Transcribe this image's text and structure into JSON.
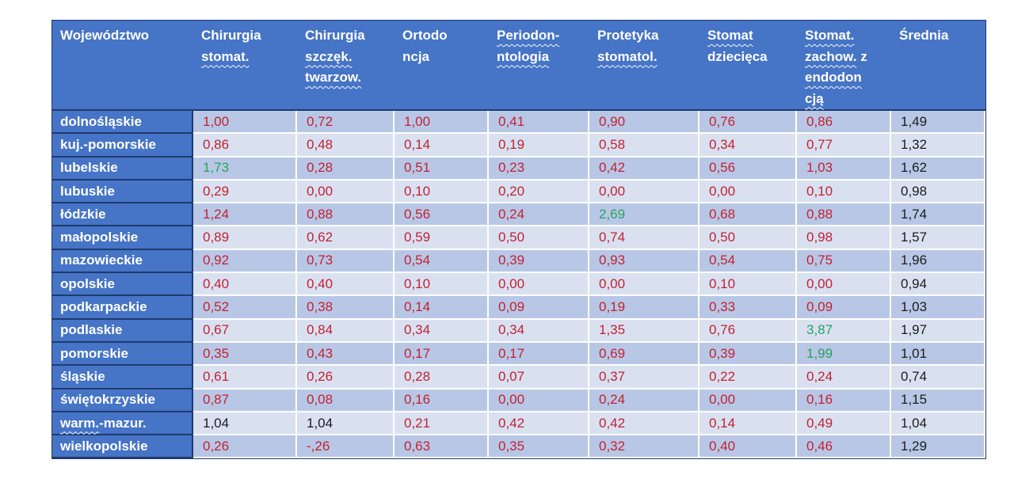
{
  "colors": {
    "header_blue": "#4674c6",
    "border_navy": "#1f3a6e",
    "band_dark": "#b8c7e6",
    "band_light": "#d9e1f1",
    "value_red": "#c32232",
    "value_green": "#27a35f",
    "value_black": "#1c1c1c"
  },
  "table": {
    "columns": [
      {
        "id": "wojewodztwo",
        "lines": [
          {
            "parts": [
              {
                "text": "Województwo",
                "wavy": false
              }
            ]
          }
        ]
      },
      {
        "id": "chirurgia-stomat",
        "lines": [
          {
            "parts": [
              {
                "text": "Chirurgia",
                "wavy": false
              }
            ]
          },
          {
            "parts": [
              {
                "text": "stomat.",
                "wavy": true
              }
            ]
          }
        ]
      },
      {
        "id": "chirurgia-szczek-twarzow",
        "lines": [
          {
            "parts": [
              {
                "text": "Chirurgia",
                "wavy": false
              }
            ]
          },
          {
            "parts": [
              {
                "text": "szczęk.",
                "wavy": true
              }
            ]
          },
          {
            "parts": [
              {
                "text": "twarzow.",
                "wavy": true
              }
            ]
          }
        ]
      },
      {
        "id": "ortodoncja",
        "lines": [
          {
            "parts": [
              {
                "text": "Ortodo",
                "wavy": false
              }
            ]
          },
          {
            "parts": [
              {
                "text": "ncja",
                "wavy": false
              }
            ]
          }
        ]
      },
      {
        "id": "periodontologia",
        "lines": [
          {
            "parts": [
              {
                "text": "Periodon-",
                "wavy": true
              }
            ]
          },
          {
            "parts": [
              {
                "text": "ntologia",
                "wavy": true
              }
            ]
          }
        ]
      },
      {
        "id": "protetyka-stomatol",
        "lines": [
          {
            "parts": [
              {
                "text": "Protetyka",
                "wavy": false
              }
            ]
          },
          {
            "parts": [
              {
                "text": "stomatol.",
                "wavy": true
              }
            ]
          }
        ]
      },
      {
        "id": "stomat-dziecieca",
        "lines": [
          {
            "parts": [
              {
                "text": "Stomat",
                "wavy": true
              }
            ]
          },
          {
            "parts": [
              {
                "text": "dziecięca",
                "wavy": false
              }
            ]
          }
        ]
      },
      {
        "id": "stomat-zachow-endodoncja",
        "lines": [
          {
            "parts": [
              {
                "text": "Stomat.",
                "wavy": true
              }
            ]
          },
          {
            "parts": [
              {
                "text": "zachow.",
                "wavy": true
              },
              {
                "text": " z",
                "wavy": false
              }
            ]
          },
          {
            "parts": [
              {
                "text": "endodon",
                "wavy": true
              }
            ]
          },
          {
            "parts": [
              {
                "text": "cją",
                "wavy": true
              }
            ]
          }
        ]
      },
      {
        "id": "srednia",
        "lines": [
          {
            "parts": [
              {
                "text": "Średnia",
                "wavy": false
              }
            ]
          }
        ]
      }
    ],
    "rows": [
      {
        "label": [
          {
            "text": "dolnośląskie",
            "wavy": false
          }
        ],
        "values": [
          {
            "t": "1,00",
            "c": "red"
          },
          {
            "t": "0,72",
            "c": "red"
          },
          {
            "t": "1,00",
            "c": "red"
          },
          {
            "t": "0,41",
            "c": "red"
          },
          {
            "t": "0,90",
            "c": "red"
          },
          {
            "t": "0,76",
            "c": "red"
          },
          {
            "t": "0,86",
            "c": "red"
          },
          {
            "t": "1,49",
            "c": "black"
          }
        ]
      },
      {
        "label": [
          {
            "text": "kuj.-pomorskie",
            "wavy": false
          }
        ],
        "values": [
          {
            "t": "0,86",
            "c": "red"
          },
          {
            "t": "0,48",
            "c": "red"
          },
          {
            "t": "0,14",
            "c": "red"
          },
          {
            "t": "0,19",
            "c": "red"
          },
          {
            "t": "0,58",
            "c": "red"
          },
          {
            "t": "0,34",
            "c": "red"
          },
          {
            "t": "0,77",
            "c": "red"
          },
          {
            "t": "1,32",
            "c": "black"
          }
        ]
      },
      {
        "label": [
          {
            "text": "lubelskie",
            "wavy": false
          }
        ],
        "values": [
          {
            "t": "1,73",
            "c": "green"
          },
          {
            "t": "0,28",
            "c": "red"
          },
          {
            "t": "0,51",
            "c": "red"
          },
          {
            "t": "0,23",
            "c": "red"
          },
          {
            "t": "0,42",
            "c": "red"
          },
          {
            "t": "0,56",
            "c": "red"
          },
          {
            "t": "1,03",
            "c": "red"
          },
          {
            "t": "1,62",
            "c": "black"
          }
        ]
      },
      {
        "label": [
          {
            "text": "lubuskie",
            "wavy": false
          }
        ],
        "values": [
          {
            "t": "0,29",
            "c": "red"
          },
          {
            "t": "0,00",
            "c": "red"
          },
          {
            "t": "0,10",
            "c": "red"
          },
          {
            "t": "0,20",
            "c": "red"
          },
          {
            "t": "0,00",
            "c": "red"
          },
          {
            "t": "0,00",
            "c": "red"
          },
          {
            "t": "0,10",
            "c": "red"
          },
          {
            "t": "0,98",
            "c": "black"
          }
        ]
      },
      {
        "label": [
          {
            "text": "łódzkie",
            "wavy": false
          }
        ],
        "values": [
          {
            "t": "1,24",
            "c": "red"
          },
          {
            "t": "0,88",
            "c": "red"
          },
          {
            "t": "0,56",
            "c": "red"
          },
          {
            "t": "0,24",
            "c": "red"
          },
          {
            "t": "2,69",
            "c": "green"
          },
          {
            "t": "0,68",
            "c": "red"
          },
          {
            "t": "0,88",
            "c": "red"
          },
          {
            "t": "1,74",
            "c": "black"
          }
        ]
      },
      {
        "label": [
          {
            "text": "małopolskie",
            "wavy": false
          }
        ],
        "values": [
          {
            "t": "0,89",
            "c": "red"
          },
          {
            "t": "0,62",
            "c": "red"
          },
          {
            "t": "0,59",
            "c": "red"
          },
          {
            "t": "0,50",
            "c": "red"
          },
          {
            "t": "0,74",
            "c": "red"
          },
          {
            "t": "0,50",
            "c": "red"
          },
          {
            "t": "0,98",
            "c": "red"
          },
          {
            "t": "1,57",
            "c": "black"
          }
        ]
      },
      {
        "label": [
          {
            "text": "mazowieckie",
            "wavy": false
          }
        ],
        "values": [
          {
            "t": "0,92",
            "c": "red"
          },
          {
            "t": "0,73",
            "c": "red"
          },
          {
            "t": "0,54",
            "c": "red"
          },
          {
            "t": "0,39",
            "c": "red"
          },
          {
            "t": "0,93",
            "c": "red"
          },
          {
            "t": "0,54",
            "c": "red"
          },
          {
            "t": "0,75",
            "c": "red"
          },
          {
            "t": "1,96",
            "c": "black"
          }
        ]
      },
      {
        "label": [
          {
            "text": "opolskie",
            "wavy": false
          }
        ],
        "values": [
          {
            "t": "0,40",
            "c": "red"
          },
          {
            "t": "0,40",
            "c": "red"
          },
          {
            "t": "0,10",
            "c": "red"
          },
          {
            "t": "0,00",
            "c": "red"
          },
          {
            "t": "0,00",
            "c": "red"
          },
          {
            "t": "0,10",
            "c": "red"
          },
          {
            "t": "0,00",
            "c": "red"
          },
          {
            "t": "0,94",
            "c": "black"
          }
        ]
      },
      {
        "label": [
          {
            "text": "podkarpackie",
            "wavy": false
          }
        ],
        "values": [
          {
            "t": "0,52",
            "c": "red"
          },
          {
            "t": "0,38",
            "c": "red"
          },
          {
            "t": "0,14",
            "c": "red"
          },
          {
            "t": "0,09",
            "c": "red"
          },
          {
            "t": "0,19",
            "c": "red"
          },
          {
            "t": "0,33",
            "c": "red"
          },
          {
            "t": "0,09",
            "c": "red"
          },
          {
            "t": "1,03",
            "c": "black"
          }
        ]
      },
      {
        "label": [
          {
            "text": "podlaskie",
            "wavy": false
          }
        ],
        "values": [
          {
            "t": "0,67",
            "c": "red"
          },
          {
            "t": "0,84",
            "c": "red"
          },
          {
            "t": "0,34",
            "c": "red"
          },
          {
            "t": "0,34",
            "c": "red"
          },
          {
            "t": "1,35",
            "c": "red"
          },
          {
            "t": "0,76",
            "c": "red"
          },
          {
            "t": "3,87",
            "c": "green"
          },
          {
            "t": "1,97",
            "c": "black"
          }
        ]
      },
      {
        "label": [
          {
            "text": "pomorskie",
            "wavy": false
          }
        ],
        "values": [
          {
            "t": "0,35",
            "c": "red"
          },
          {
            "t": "0,43",
            "c": "red"
          },
          {
            "t": "0,17",
            "c": "red"
          },
          {
            "t": "0,17",
            "c": "red"
          },
          {
            "t": "0,69",
            "c": "red"
          },
          {
            "t": "0,39",
            "c": "red"
          },
          {
            "t": "1,99",
            "c": "green"
          },
          {
            "t": "1,01",
            "c": "black"
          }
        ]
      },
      {
        "label": [
          {
            "text": "śląskie",
            "wavy": false
          }
        ],
        "values": [
          {
            "t": "0,61",
            "c": "red"
          },
          {
            "t": "0,26",
            "c": "red"
          },
          {
            "t": "0,28",
            "c": "red"
          },
          {
            "t": "0,07",
            "c": "red"
          },
          {
            "t": "0,37",
            "c": "red"
          },
          {
            "t": "0,22",
            "c": "red"
          },
          {
            "t": "0,24",
            "c": "red"
          },
          {
            "t": "0,74",
            "c": "black"
          }
        ]
      },
      {
        "label": [
          {
            "text": "świętokrzyskie",
            "wavy": false
          }
        ],
        "values": [
          {
            "t": "0,87",
            "c": "red"
          },
          {
            "t": "0,08",
            "c": "red"
          },
          {
            "t": "0,16",
            "c": "red"
          },
          {
            "t": "0,00",
            "c": "red"
          },
          {
            "t": "0,24",
            "c": "red"
          },
          {
            "t": "0,00",
            "c": "red"
          },
          {
            "t": "0,16",
            "c": "red"
          },
          {
            "t": "1,15",
            "c": "black"
          }
        ]
      },
      {
        "label": [
          {
            "text": "warm.",
            "wavy": true
          },
          {
            "text": "-mazur.",
            "wavy": false
          }
        ],
        "values": [
          {
            "t": "1,04",
            "c": "black"
          },
          {
            "t": "1,04",
            "c": "black"
          },
          {
            "t": "0,21",
            "c": "red"
          },
          {
            "t": "0,42",
            "c": "red"
          },
          {
            "t": "0,42",
            "c": "red"
          },
          {
            "t": "0,14",
            "c": "red"
          },
          {
            "t": "0,49",
            "c": "red"
          },
          {
            "t": "1,04",
            "c": "black"
          }
        ]
      },
      {
        "label": [
          {
            "text": "wielkopolskie",
            "wavy": false
          }
        ],
        "values": [
          {
            "t": "0,26",
            "c": "red"
          },
          {
            "t": "-,26",
            "c": "red"
          },
          {
            "t": "0,63",
            "c": "red"
          },
          {
            "t": "0,35",
            "c": "red"
          },
          {
            "t": "0,32",
            "c": "red"
          },
          {
            "t": "0,40",
            "c": "red"
          },
          {
            "t": "0,46",
            "c": "red"
          },
          {
            "t": "1,29",
            "c": "black"
          }
        ]
      }
    ]
  }
}
